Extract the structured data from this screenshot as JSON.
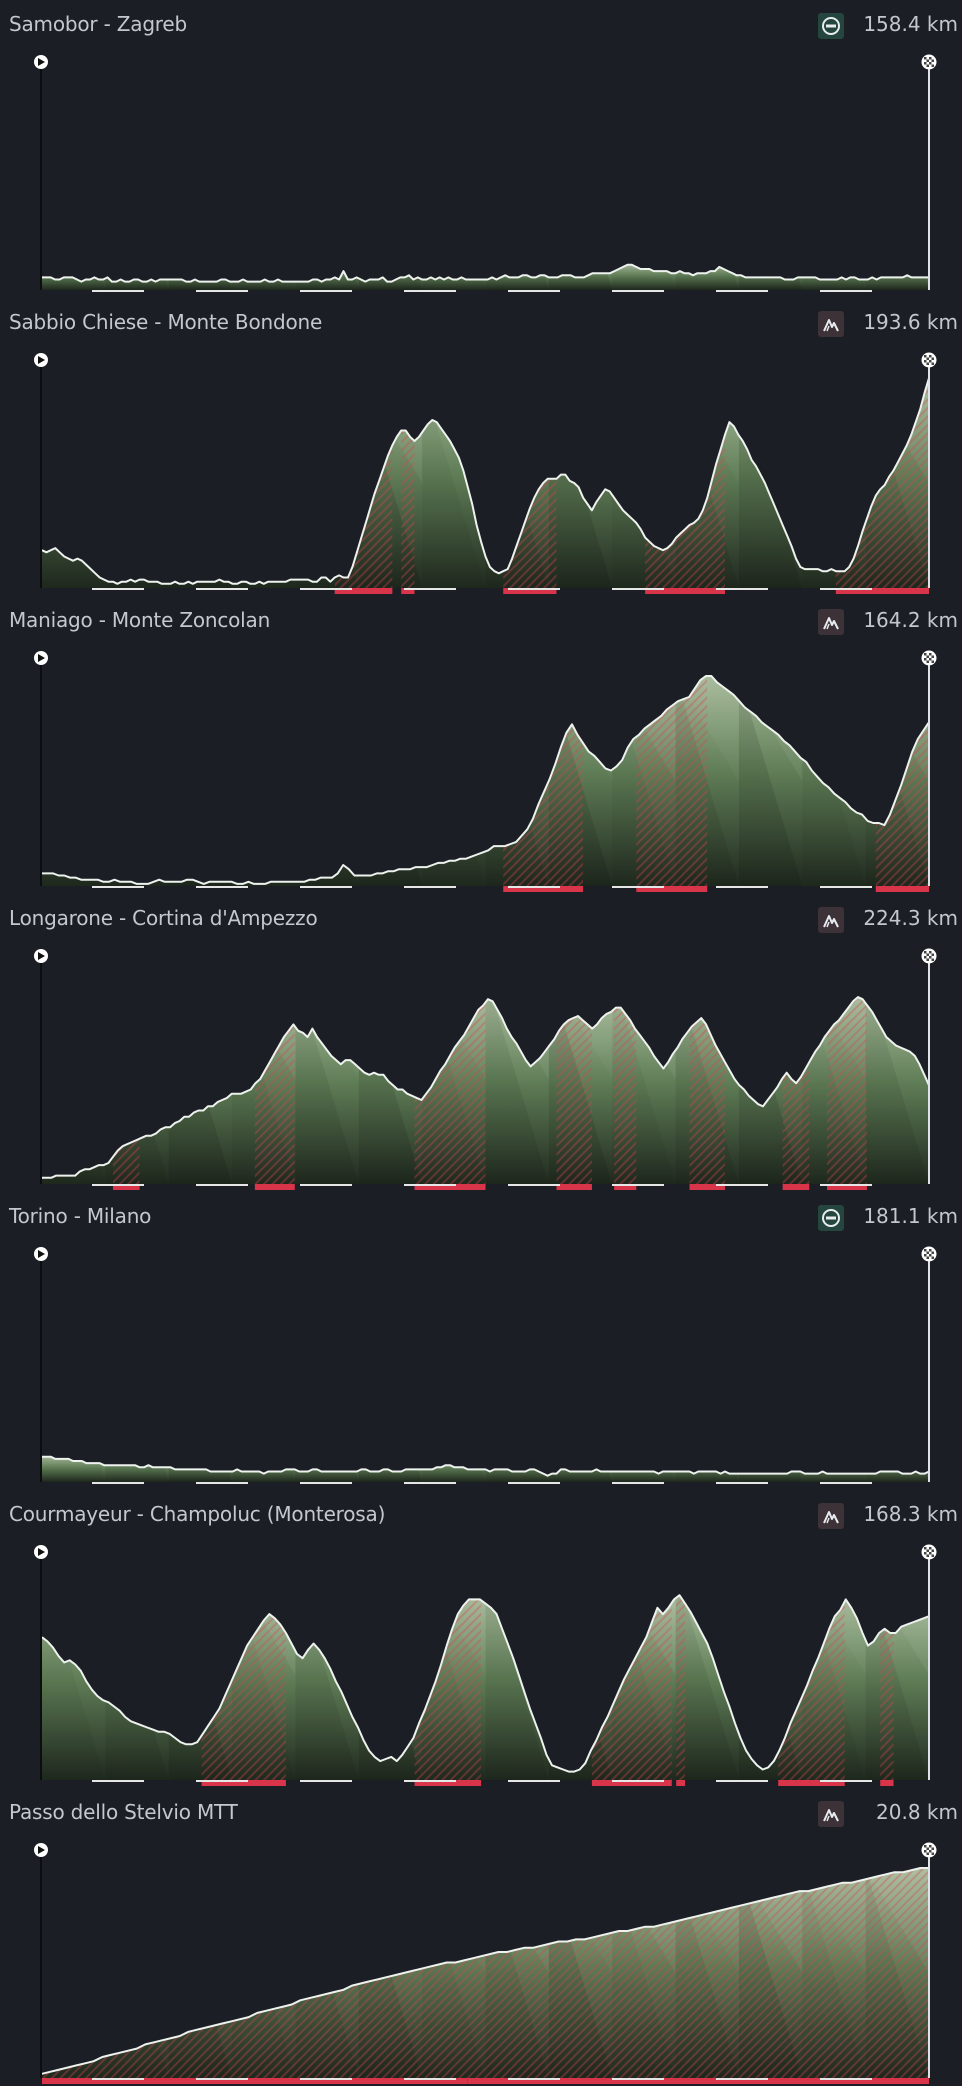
{
  "stages": [
    {
      "title": "Samobor - Zagreb",
      "distance": "158.4 km",
      "type_icon": "flat-stage-icon",
      "profile": [
        6,
        6,
        6,
        5,
        5,
        6,
        6,
        6,
        5,
        4,
        5,
        5,
        6,
        5,
        5,
        6,
        4,
        4,
        5,
        4,
        4,
        5,
        5,
        4,
        4,
        5,
        4,
        5,
        5,
        5,
        5,
        5,
        5,
        4,
        4,
        5,
        4,
        4,
        4,
        4,
        4,
        5,
        5,
        4,
        4,
        4,
        5,
        4,
        4,
        4,
        4,
        5,
        4,
        4,
        5,
        4,
        4,
        4,
        4,
        4,
        4,
        4,
        5,
        5,
        4,
        5,
        5,
        6,
        5,
        9,
        5,
        5,
        6,
        5,
        4,
        5,
        5,
        5,
        6,
        4,
        4,
        5,
        6,
        6,
        7,
        5,
        6,
        5,
        5,
        6,
        5,
        6,
        5,
        6,
        5,
        5,
        6,
        5,
        5,
        5,
        5,
        5,
        5,
        6,
        5,
        6,
        7,
        6,
        6,
        6,
        7,
        7,
        6,
        6,
        7,
        7,
        6,
        6,
        6,
        7,
        7,
        7,
        6,
        6,
        6,
        7,
        8,
        8,
        8,
        8,
        8,
        9,
        10,
        11,
        12,
        12,
        11,
        10,
        10,
        10,
        9,
        9,
        9,
        9,
        8,
        8,
        9,
        8,
        8,
        7,
        8,
        8,
        8,
        9,
        9,
        11,
        10,
        9,
        8,
        7,
        7,
        6,
        6,
        6,
        6,
        6,
        6,
        6,
        6,
        6,
        5,
        5,
        5,
        6,
        6,
        6,
        6,
        6,
        5,
        5,
        5,
        5,
        5,
        6,
        5,
        6,
        6,
        5,
        5,
        5,
        6,
        5,
        6,
        6,
        6,
        6,
        6,
        6,
        7,
        6,
        6,
        6,
        6,
        6
      ],
      "climbs": []
    },
    {
      "title": "Sabbio Chiese - Monte Bondone",
      "distance": "193.6 km",
      "type_icon": "mountain-stage-icon",
      "profile": [
        18,
        17,
        18,
        19,
        17,
        15,
        14,
        13,
        14,
        13,
        11,
        9,
        7,
        5,
        4,
        3,
        3,
        2,
        3,
        3,
        4,
        3,
        4,
        4,
        3,
        3,
        3,
        2,
        2,
        2,
        3,
        2,
        2,
        3,
        2,
        3,
        3,
        3,
        3,
        3,
        4,
        3,
        3,
        2,
        2,
        3,
        3,
        2,
        2,
        3,
        2,
        3,
        3,
        3,
        3,
        3,
        4,
        4,
        4,
        4,
        4,
        3,
        3,
        5,
        5,
        3,
        5,
        6,
        5,
        5,
        10,
        17,
        24,
        31,
        38,
        45,
        51,
        57,
        63,
        68,
        72,
        75,
        75,
        72,
        70,
        72,
        75,
        78,
        80,
        79,
        76,
        73,
        70,
        66,
        62,
        56,
        48,
        40,
        30,
        22,
        15,
        10,
        8,
        7,
        8,
        9,
        14,
        20,
        26,
        32,
        38,
        43,
        47,
        50,
        52,
        52,
        52,
        54,
        54,
        51,
        50,
        48,
        43,
        40,
        37,
        41,
        44,
        47,
        46,
        43,
        40,
        37,
        35,
        33,
        31,
        28,
        24,
        22,
        20,
        19,
        18,
        19,
        21,
        24,
        26,
        28,
        30,
        31,
        33,
        37,
        43,
        51,
        59,
        66,
        73,
        79,
        77,
        73,
        70,
        66,
        61,
        58,
        54,
        50,
        45,
        40,
        35,
        30,
        25,
        20,
        14,
        10,
        9,
        9,
        9,
        9,
        8,
        8,
        9,
        8,
        8,
        8,
        10,
        14,
        20,
        27,
        33,
        39,
        44,
        47,
        49,
        53,
        56,
        60,
        64,
        68,
        73,
        79,
        85,
        93,
        100
      ],
      "climbs": [
        [
          0.33,
          0.395
        ],
        [
          0.405,
          0.42
        ],
        [
          0.52,
          0.58
        ],
        [
          0.68,
          0.77
        ],
        [
          0.895,
          1.0
        ]
      ]
    },
    {
      "title": "Maniago - Monte Zoncolan",
      "distance": "164.2 km",
      "type_icon": "mountain-stage-icon",
      "profile": [
        6,
        6,
        6,
        5,
        5,
        4,
        4,
        3,
        3,
        3,
        3,
        2,
        2,
        3,
        2,
        2,
        2,
        1,
        1,
        1,
        2,
        3,
        2,
        2,
        2,
        2,
        3,
        3,
        2,
        1,
        2,
        2,
        2,
        2,
        2,
        1,
        1,
        2,
        1,
        1,
        1,
        2,
        2,
        2,
        2,
        2,
        2,
        2,
        3,
        3,
        4,
        4,
        4,
        6,
        10,
        8,
        5,
        5,
        5,
        5,
        6,
        6,
        7,
        7,
        8,
        8,
        8,
        9,
        9,
        9,
        10,
        11,
        11,
        12,
        12,
        13,
        13,
        14,
        15,
        16,
        17,
        19,
        19,
        19,
        20,
        21,
        24,
        27,
        32,
        39,
        45,
        51,
        58,
        66,
        73,
        77,
        72,
        68,
        64,
        62,
        59,
        56,
        55,
        57,
        60,
        66,
        70,
        72,
        75,
        77,
        79,
        81,
        84,
        86,
        88,
        89,
        90,
        94,
        98,
        100,
        100,
        97,
        95,
        93,
        91,
        88,
        85,
        83,
        81,
        78,
        76,
        74,
        72,
        69,
        67,
        64,
        61,
        59,
        55,
        52,
        49,
        47,
        44,
        42,
        40,
        37,
        35,
        34,
        31,
        30,
        30,
        29,
        34,
        41,
        48,
        56,
        64,
        70,
        74,
        78
      ],
      "climbs": [
        [
          0.52,
          0.61
        ],
        [
          0.67,
          0.75
        ],
        [
          0.94,
          1.0
        ]
      ]
    },
    {
      "title": "Longarone - Cortina d'Ampezzo",
      "distance": "224.3 km",
      "type_icon": "mountain-stage-icon",
      "profile": [
        3,
        3,
        3,
        4,
        4,
        4,
        4,
        4,
        6,
        7,
        7,
        8,
        9,
        9,
        10,
        13,
        16,
        18,
        19,
        20,
        21,
        22,
        23,
        23,
        24,
        26,
        27,
        27,
        29,
        30,
        32,
        32,
        34,
        35,
        35,
        37,
        37,
        39,
        40,
        41,
        43,
        43,
        43,
        44,
        45,
        48,
        50,
        54,
        58,
        62,
        66,
        70,
        73,
        76,
        73,
        72,
        70,
        74,
        70,
        67,
        64,
        61,
        59,
        57,
        59,
        59,
        57,
        55,
        53,
        52,
        53,
        52,
        52,
        49,
        47,
        45,
        45,
        43,
        42,
        41,
        40,
        43,
        46,
        50,
        54,
        57,
        61,
        65,
        68,
        71,
        75,
        79,
        83,
        85,
        88,
        87,
        83,
        79,
        74,
        70,
        67,
        63,
        59,
        56,
        58,
        60,
        63,
        66,
        69,
        73,
        76,
        78,
        79,
        80,
        78,
        76,
        74,
        76,
        79,
        81,
        82,
        84,
        84,
        81,
        78,
        74,
        71,
        68,
        65,
        61,
        58,
        55,
        58,
        62,
        65,
        69,
        72,
        75,
        77,
        79,
        76,
        71,
        66,
        62,
        58,
        54,
        50,
        47,
        45,
        42,
        40,
        38,
        37,
        40,
        43,
        46,
        50,
        53,
        50,
        48,
        51,
        55,
        59,
        63,
        66,
        70,
        73,
        76,
        78,
        81,
        84,
        87,
        89,
        88,
        85,
        82,
        78,
        74,
        70,
        68,
        66,
        65,
        64,
        63,
        61,
        57,
        52,
        47
      ],
      "climbs": [
        [
          0.08,
          0.11
        ],
        [
          0.24,
          0.285
        ],
        [
          0.42,
          0.5
        ],
        [
          0.58,
          0.62
        ],
        [
          0.645,
          0.67
        ],
        [
          0.73,
          0.77
        ],
        [
          0.835,
          0.865
        ],
        [
          0.885,
          0.93
        ]
      ]
    },
    {
      "title": "Torino - Milano",
      "distance": "181.1 km",
      "type_icon": "flat-stage-icon",
      "profile": [
        12,
        12,
        12,
        11,
        11,
        11,
        11,
        10,
        10,
        10,
        9,
        9,
        9,
        9,
        8,
        8,
        8,
        8,
        8,
        8,
        8,
        8,
        7,
        7,
        8,
        7,
        7,
        7,
        7,
        7,
        6,
        6,
        6,
        6,
        6,
        6,
        6,
        6,
        5,
        5,
        5,
        5,
        5,
        5,
        6,
        5,
        5,
        5,
        5,
        5,
        4,
        5,
        5,
        5,
        5,
        6,
        6,
        6,
        5,
        5,
        5,
        6,
        6,
        5,
        5,
        5,
        5,
        5,
        5,
        5,
        5,
        5,
        6,
        6,
        5,
        5,
        5,
        6,
        6,
        5,
        5,
        5,
        6,
        6,
        6,
        6,
        6,
        6,
        6,
        7,
        7,
        8,
        8,
        7,
        7,
        7,
        6,
        6,
        6,
        6,
        6,
        5,
        6,
        6,
        6,
        6,
        5,
        5,
        5,
        5,
        6,
        6,
        5,
        4,
        3,
        4,
        4,
        6,
        6,
        5,
        5,
        5,
        5,
        5,
        5,
        6,
        5,
        5,
        5,
        5,
        5,
        5,
        5,
        5,
        5,
        5,
        5,
        5,
        5,
        4,
        5,
        5,
        5,
        5,
        5,
        5,
        5,
        4,
        5,
        5,
        5,
        5,
        5,
        4,
        5,
        4,
        4,
        4,
        4,
        4,
        4,
        4,
        4,
        4,
        4,
        4,
        4,
        4,
        4,
        5,
        5,
        5,
        4,
        4,
        4,
        4,
        5,
        4,
        4,
        4,
        4,
        4,
        4,
        4,
        4,
        4,
        4,
        4,
        4,
        5,
        5,
        5,
        5,
        5,
        4,
        4,
        4,
        5,
        4,
        4,
        5
      ],
      "climbs": []
    },
    {
      "title": "Courmayeur - Champoluc (Monterosa)",
      "distance": "168.3 km",
      "type_icon": "mountain-stage-icon",
      "profile": [
        68,
        66,
        63,
        59,
        56,
        57,
        55,
        52,
        47,
        43,
        40,
        38,
        37,
        35,
        33,
        30,
        28,
        27,
        26,
        25,
        24,
        23,
        23,
        22,
        20,
        18,
        17,
        17,
        18,
        22,
        26,
        30,
        34,
        40,
        46,
        52,
        58,
        64,
        68,
        72,
        76,
        79,
        77,
        74,
        70,
        65,
        60,
        58,
        62,
        65,
        62,
        58,
        53,
        47,
        42,
        36,
        30,
        25,
        19,
        14,
        11,
        9,
        10,
        11,
        9,
        12,
        16,
        20,
        27,
        33,
        40,
        47,
        55,
        64,
        72,
        79,
        83,
        86,
        86,
        86,
        84,
        82,
        79,
        72,
        65,
        58,
        50,
        42,
        34,
        27,
        20,
        12,
        7,
        6,
        5,
        4,
        4,
        5,
        8,
        14,
        19,
        25,
        30,
        36,
        42,
        48,
        53,
        58,
        63,
        68,
        75,
        82,
        79,
        82,
        86,
        88,
        84,
        80,
        75,
        70,
        65,
        58,
        50,
        42,
        35,
        27,
        20,
        14,
        10,
        7,
        5,
        6,
        9,
        14,
        20,
        27,
        33,
        39,
        45,
        52,
        58,
        65,
        72,
        78,
        81,
        86,
        82,
        77,
        70,
        64,
        66,
        70,
        72,
        70,
        70,
        73,
        74,
        75,
        76,
        77,
        78
      ],
      "climbs": [
        [
          0.18,
          0.275
        ],
        [
          0.42,
          0.495
        ],
        [
          0.62,
          0.71
        ],
        [
          0.715,
          0.725
        ],
        [
          0.83,
          0.905
        ],
        [
          0.945,
          0.96
        ]
      ]
    },
    {
      "title": "Passo dello Stelvio MTT",
      "distance": "20.8 km",
      "type_icon": "mountain-stage-icon",
      "profile": [
        2,
        3,
        4,
        5,
        6,
        7,
        8,
        10,
        11,
        12,
        13,
        14,
        16,
        17,
        18,
        19,
        20,
        22,
        23,
        24,
        25,
        26,
        27,
        28,
        29,
        31,
        32,
        33,
        34,
        35,
        37,
        38,
        39,
        40,
        41,
        42,
        44,
        45,
        46,
        47,
        48,
        49,
        50,
        51,
        52,
        53,
        54,
        55,
        55,
        56,
        57,
        58,
        59,
        60,
        60,
        61,
        62,
        62,
        63,
        64,
        65,
        65,
        66,
        66,
        67,
        68,
        69,
        70,
        70,
        71,
        72,
        72,
        73,
        74,
        75,
        76,
        77,
        78,
        79,
        80,
        81,
        82,
        83,
        84,
        85,
        86,
        87,
        88,
        89,
        89,
        90,
        91,
        92,
        93,
        93,
        94,
        95,
        96,
        97,
        98,
        98,
        99,
        100,
        100
      ],
      "climbs": [
        [
          0.0,
          0.48
        ],
        [
          0.48,
          1.0
        ]
      ]
    }
  ]
}
